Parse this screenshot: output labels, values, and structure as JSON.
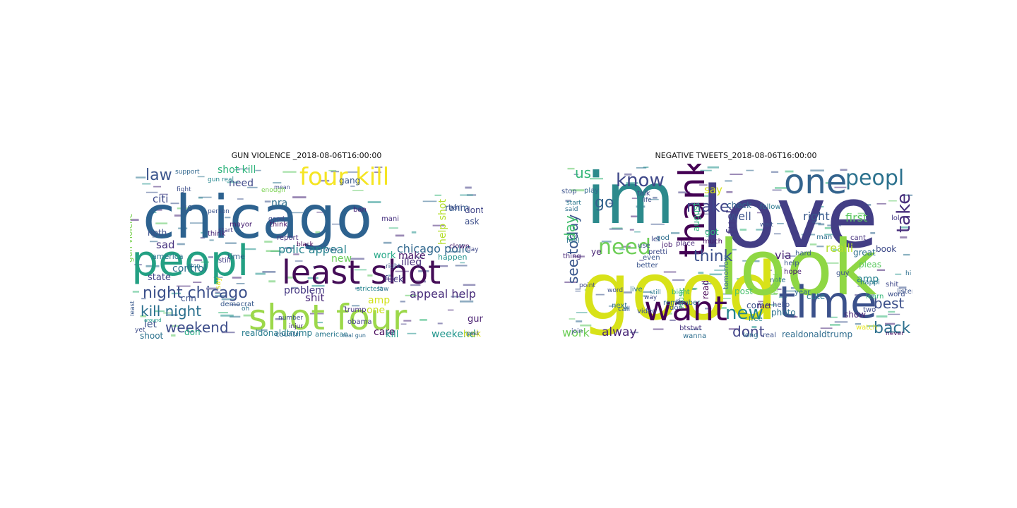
{
  "figure": {
    "panels": [
      {
        "title": "GUN VIOLENCE _2018-08-06T16:00:00",
        "words": [
          {
            "w": "chicago",
            "c": "#2d628f"
          },
          {
            "w": "peopl",
            "c": "#23a083"
          },
          {
            "w": "least shot",
            "c": "#440d57"
          },
          {
            "w": "shot four",
            "c": "#9cd84a"
          },
          {
            "w": "four kill",
            "c": "#f5e523"
          },
          {
            "w": "night chicago",
            "c": "#3c508b"
          },
          {
            "w": "kill night",
            "c": "#2a6f8e"
          },
          {
            "w": "weekend",
            "c": "#3d4d8a"
          },
          {
            "w": "law",
            "c": "#3a548c"
          },
          {
            "w": "shit",
            "c": "#482878"
          },
          {
            "w": "polic appeal",
            "c": "#26828e"
          },
          {
            "w": "chicago polic",
            "c": "#31688e"
          },
          {
            "w": "appeal help",
            "c": "#472c7a"
          },
          {
            "w": "problem",
            "c": "#453882"
          },
          {
            "w": "control",
            "c": "#2e6e8e"
          },
          {
            "w": "state",
            "c": "#414487"
          },
          {
            "w": "citi",
            "c": "#3e4a89"
          },
          {
            "w": "go",
            "c": "#355f8d"
          },
          {
            "w": "nra",
            "c": "#30708e"
          },
          {
            "w": "need",
            "c": "#3f4889"
          },
          {
            "w": "shot kill",
            "c": "#2fb47c"
          },
          {
            "w": "rahm",
            "c": "#375b8d"
          },
          {
            "w": "gang",
            "c": "#38588c"
          },
          {
            "w": "dont",
            "c": "#404588"
          },
          {
            "w": "ask",
            "c": "#3d4e8a"
          },
          {
            "w": "illeg",
            "c": "#472d7b"
          },
          {
            "w": "new",
            "c": "#6ccd5a"
          },
          {
            "w": "make",
            "c": "#48186a"
          },
          {
            "w": "work",
            "c": "#21a685"
          },
          {
            "w": "help shot",
            "c": "#b5de2b"
          },
          {
            "w": "amp",
            "c": "#d2e21b"
          },
          {
            "w": "one",
            "c": "#c8e020"
          },
          {
            "w": "fuck",
            "c": "#443983"
          },
          {
            "w": "care",
            "c": "#450559"
          },
          {
            "w": "kill",
            "c": "#1f9a8a"
          },
          {
            "w": "weekend",
            "c": "#1f958b"
          },
          {
            "w": "gun",
            "c": "#481f70"
          },
          {
            "w": "look",
            "c": "#dde318"
          },
          {
            "w": "realdonaldtrump",
            "c": "#287c8e"
          },
          {
            "w": "let",
            "c": "#3b528b"
          },
          {
            "w": "cnn",
            "c": "#3b518b"
          },
          {
            "w": "shoot",
            "c": "#2c728e"
          },
          {
            "w": "don",
            "c": "#25ab82"
          },
          {
            "w": "sad",
            "c": "#46327e"
          },
          {
            "w": "noth",
            "c": "#3c4f8a"
          },
          {
            "w": "america",
            "c": "#2b758e"
          },
          {
            "w": "time",
            "c": "#34608d"
          },
          {
            "w": "report",
            "c": "#46337f"
          },
          {
            "w": "mayor",
            "c": "#482173"
          },
          {
            "w": "think",
            "c": "#471365"
          },
          {
            "w": "good",
            "c": "#3e4989"
          },
          {
            "w": "support",
            "c": "#31678e"
          },
          {
            "w": "gun real",
            "c": "#24868e"
          },
          {
            "w": "fight",
            "c": "#3d4e8a"
          },
          {
            "w": "gun violenc",
            "c": "#7ad151"
          },
          {
            "w": "person",
            "c": "#3b528b"
          },
          {
            "w": "start",
            "c": "#443a83"
          },
          {
            "w": "ban",
            "c": "#482475"
          },
          {
            "w": "mani",
            "c": "#46307e"
          },
          {
            "w": "bari",
            "c": "#3e4c8a"
          },
          {
            "w": "clown",
            "c": "#481b6d"
          },
          {
            "w": "strictest",
            "c": "#25848e"
          },
          {
            "w": "law",
            "c": "#2d708e"
          },
          {
            "w": "trump",
            "c": "#46327e"
          },
          {
            "w": "obama",
            "c": "#424186"
          },
          {
            "w": "black",
            "c": "#440154"
          },
          {
            "w": "right",
            "c": "#39568c"
          },
          {
            "w": "still",
            "c": "#433e85"
          },
          {
            "w": "say",
            "c": "#e5e419"
          },
          {
            "w": "stop",
            "c": "#2e6f8e"
          },
          {
            "w": "number",
            "c": "#3c4f8a"
          },
          {
            "w": "democrat",
            "c": "#38598c"
          },
          {
            "w": "american",
            "c": "#2a788e"
          },
          {
            "w": "countri",
            "c": "#31688e"
          },
          {
            "w": "happen",
            "c": "#21918c"
          },
          {
            "w": "day",
            "c": "#3f4788"
          },
          {
            "w": "past",
            "c": "#3a548c"
          },
          {
            "w": "injur",
            "c": "#46337f"
          },
          {
            "w": "oh",
            "c": "#2c718e"
          },
          {
            "w": "way",
            "c": "#34618d"
          },
          {
            "w": "think",
            "c": "#482878"
          },
          {
            "w": "least",
            "c": "#38588c"
          },
          {
            "w": "yet",
            "c": "#3e4c8a"
          },
          {
            "w": "real gun",
            "c": "#2f6b8e"
          },
          {
            "w": "around",
            "c": "#1fa088"
          },
          {
            "w": "mean",
            "c": "#3e4989"
          },
          {
            "w": "enough",
            "c": "#7ad151"
          }
        ]
      },
      {
        "title": "NEGATIVE TWEETS_2018-08-06T16:00:00",
        "words": [
          {
            "w": "love",
            "c": "#433e85"
          },
          {
            "w": "im",
            "c": "#2c8a8c"
          },
          {
            "w": "good",
            "c": "#d8e219"
          },
          {
            "w": "look",
            "c": "#8fd744"
          },
          {
            "w": "time",
            "c": "#3b518b"
          },
          {
            "w": "one",
            "c": "#33638d"
          },
          {
            "w": "thank",
            "c": "#440154"
          },
          {
            "w": "want",
            "c": "#440154"
          },
          {
            "w": "need",
            "c": "#6ece58"
          },
          {
            "w": "know",
            "c": "#3f4889"
          },
          {
            "w": "make",
            "c": "#404588"
          },
          {
            "w": "peopl",
            "c": "#2c728e"
          },
          {
            "w": "take",
            "c": "#472d7b"
          },
          {
            "w": "see today",
            "c": "#39568c"
          },
          {
            "w": "day",
            "c": "#46c06f"
          },
          {
            "w": "us",
            "c": "#35b779"
          },
          {
            "w": "go",
            "c": "#33638d"
          },
          {
            "w": "think",
            "c": "#3c508b"
          },
          {
            "w": "fuck",
            "c": "#443a83"
          },
          {
            "w": "new",
            "c": "#25838e"
          },
          {
            "w": "dont",
            "c": "#414487"
          },
          {
            "w": "best",
            "c": "#3c4f8a"
          },
          {
            "w": "back",
            "c": "#2d708e"
          },
          {
            "w": "first",
            "c": "#5ec962"
          },
          {
            "w": "well",
            "c": "#3b528b"
          },
          {
            "w": "right",
            "c": "#38598c"
          },
          {
            "w": "realli",
            "c": "#b5de2b"
          },
          {
            "w": "via",
            "c": "#482173"
          },
          {
            "w": "say",
            "c": "#d5e21a"
          },
          {
            "w": "alway",
            "c": "#482677"
          },
          {
            "w": "work",
            "c": "#6ece58"
          },
          {
            "w": "ye",
            "c": "#482374"
          },
          {
            "w": "realdonaldtrump",
            "c": "#2f6c8e"
          },
          {
            "w": "note",
            "c": "#2e6e8e"
          },
          {
            "w": "amp",
            "c": "#26828e"
          },
          {
            "w": "cute",
            "c": "#2a778e"
          },
          {
            "w": "great",
            "c": "#2e6f8e"
          },
          {
            "w": "book",
            "c": "#3e4a89"
          },
          {
            "w": "show",
            "c": "#482475"
          },
          {
            "w": "pleas",
            "c": "#5ec962"
          },
          {
            "w": "guy",
            "c": "#3b518b"
          },
          {
            "w": "year",
            "c": "#31688e"
          },
          {
            "w": "photo",
            "c": "#2c718e"
          },
          {
            "w": "hello",
            "c": "#3d4e8a"
          },
          {
            "w": "watch",
            "c": "#e5e419"
          },
          {
            "w": "never",
            "c": "#471063"
          },
          {
            "w": "hope",
            "c": "#481c6e"
          },
          {
            "w": "help",
            "c": "#3a548c"
          },
          {
            "w": "hard",
            "c": "#375b8d"
          },
          {
            "w": "man",
            "c": "#2e6e8e"
          },
          {
            "w": "cant",
            "c": "#46327e"
          },
          {
            "w": "happi",
            "c": "#2a788e"
          },
          {
            "w": "listen",
            "c": "#3b528b"
          },
          {
            "w": "come",
            "c": "#3c4f8a"
          },
          {
            "w": "two",
            "c": "#3e4c8a"
          },
          {
            "w": "free",
            "c": "#26828e"
          },
          {
            "w": "fact",
            "c": "#471365"
          },
          {
            "w": "post",
            "c": "#4ac16d"
          },
          {
            "w": "job",
            "c": "#481f70"
          },
          {
            "w": "read",
            "c": "#440154"
          },
          {
            "w": "let",
            "c": "#3e4989"
          },
          {
            "w": "got",
            "c": "#2fb47c"
          },
          {
            "w": "much",
            "c": "#471365"
          },
          {
            "w": "said",
            "c": "#2d708e"
          },
          {
            "w": "start",
            "c": "#2a788e"
          },
          {
            "w": "stop",
            "c": "#3b528b"
          },
          {
            "w": "play",
            "c": "#31688e"
          },
          {
            "w": "talk",
            "c": "#404588"
          },
          {
            "w": "life",
            "c": "#3e4c8a"
          },
          {
            "w": "feel",
            "c": "#2c728e"
          },
          {
            "w": "thing",
            "c": "#482878"
          },
          {
            "w": "point",
            "c": "#3f4889"
          },
          {
            "w": "god",
            "c": "#2e6e8e"
          },
          {
            "w": "use",
            "c": "#3b528b"
          },
          {
            "w": "even",
            "c": "#39568c"
          },
          {
            "w": "live",
            "c": "#2a778e"
          },
          {
            "w": "way",
            "c": "#3e4a89"
          },
          {
            "w": "video",
            "c": "#3b528b"
          },
          {
            "w": "call",
            "c": "#375b8d"
          },
          {
            "w": "next",
            "c": "#2e6f8e"
          },
          {
            "w": "word",
            "c": "#3c4f8a"
          },
          {
            "w": "join",
            "c": "#3e4c8a"
          },
          {
            "w": "better",
            "c": "#3a548c"
          },
          {
            "w": "don",
            "c": "#3b528b"
          },
          {
            "w": "wanna",
            "c": "#2e6e8e"
          },
          {
            "w": "btstwt",
            "c": "#46327e"
          },
          {
            "w": "long",
            "c": "#2c718e"
          },
          {
            "w": "real",
            "c": "#3b518b"
          },
          {
            "w": "follow",
            "c": "#2a788e"
          },
          {
            "w": "check",
            "c": "#33638d"
          },
          {
            "w": "wait",
            "c": "#3b528b"
          },
          {
            "w": "august",
            "c": "#2fb47c"
          },
          {
            "w": "tomorrow",
            "c": "#31688e"
          },
          {
            "w": "friend",
            "c": "#7ad151"
          },
          {
            "w": "learn",
            "c": "#35b779"
          },
          {
            "w": "shit",
            "c": "#3f4889"
          },
          {
            "w": "hi",
            "c": "#2e6f8e"
          },
          {
            "w": "lol",
            "c": "#443983"
          },
          {
            "w": "pretti",
            "c": "#3e4c8a"
          },
          {
            "w": "place",
            "c": "#482878"
          },
          {
            "w": "music",
            "c": "#4ac16d"
          },
          {
            "w": "bight",
            "c": "#2fb47c"
          },
          {
            "w": "ll",
            "c": "#3b528b"
          },
          {
            "w": "word",
            "c": "#3c4f8a"
          },
          {
            "w": "still",
            "c": "#2a788e"
          },
          {
            "w": "ri",
            "c": "#3b528b"
          },
          {
            "w": "remember",
            "c": "#2e6e8e"
          }
        ]
      }
    ]
  }
}
